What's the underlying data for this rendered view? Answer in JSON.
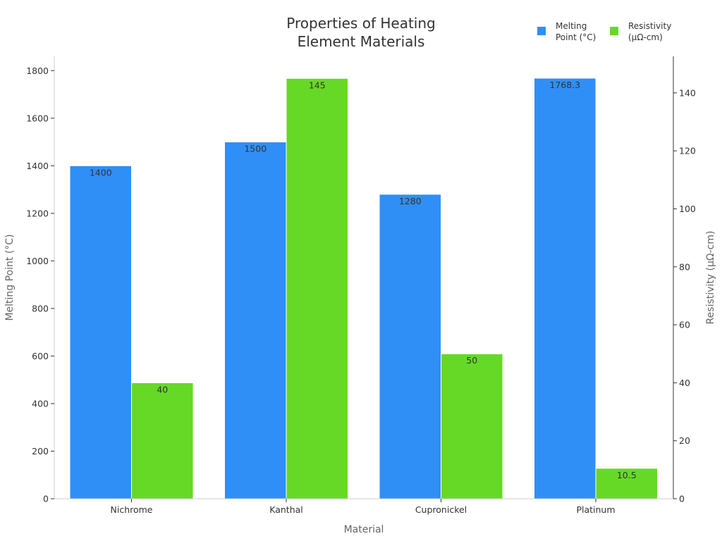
{
  "chart_data": {
    "type": "bar",
    "title_lines": [
      "Properties of Heating",
      "Element Materials"
    ],
    "xlabel": "Material",
    "ylabel_left": "Melting Point (°C)",
    "ylabel_right": "Resistivity (μΩ-cm)",
    "categories": [
      "Nichrome",
      "Kanthal",
      "Cupronickel",
      "Platinum"
    ],
    "series": [
      {
        "name_lines": [
          "Melting",
          "Point (°C)"
        ],
        "axis": "left",
        "color": "#2f8ff7",
        "values": [
          1400,
          1500,
          1280,
          1768.3
        ],
        "labels": [
          "1400",
          "1500",
          "1280",
          "1768.3"
        ]
      },
      {
        "name_lines": [
          "Resistivity",
          "(μΩ-cm)"
        ],
        "axis": "right",
        "color": "#66d926",
        "values": [
          40,
          145,
          50,
          10.5
        ],
        "labels": [
          "40",
          "145",
          "50",
          "10.5"
        ]
      }
    ],
    "ylim_left": [
      0,
      1860
    ],
    "ylim_right": [
      0,
      152.6
    ],
    "yticks_left": [
      "0",
      "200",
      "400",
      "600",
      "800",
      "1000",
      "1200",
      "1400",
      "1600",
      "1800"
    ],
    "yticks_right": [
      "0",
      "20",
      "40",
      "60",
      "80",
      "100",
      "120",
      "140"
    ],
    "grid": false,
    "legend_position": "top-right"
  }
}
